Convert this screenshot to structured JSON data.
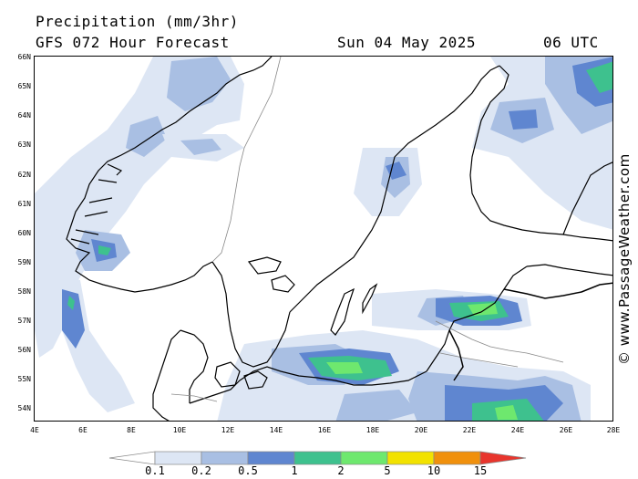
{
  "header": {
    "title": "Precipitation (mm/3hr)",
    "model": "GFS 072 Hour Forecast",
    "date": "Sun 04 May 2025",
    "time": "06 UTC"
  },
  "watermark": "© www.PassageWeather.com",
  "map": {
    "lon_range": [
      4,
      28
    ],
    "lat_range": [
      53.6,
      66
    ],
    "lat_labels": [
      "66N",
      "65N",
      "64N",
      "63N",
      "62N",
      "61N",
      "60N",
      "59N",
      "58N",
      "57N",
      "56N",
      "55N",
      "54N"
    ],
    "lat_values": [
      66,
      65,
      64,
      63,
      62,
      61,
      60,
      59,
      58,
      57,
      56,
      55,
      54
    ],
    "lon_labels": [
      "4E",
      "6E",
      "8E",
      "10E",
      "12E",
      "14E",
      "16E",
      "18E",
      "20E",
      "22E",
      "24E",
      "26E",
      "28E"
    ],
    "lon_values": [
      4,
      6,
      8,
      10,
      12,
      14,
      16,
      18,
      20,
      22,
      24,
      26,
      28
    ],
    "colors": {
      "land": "#ffffff",
      "coast": "#000000",
      "border": "#888888"
    }
  },
  "legend": {
    "labels": [
      "0.1",
      "0.2",
      "0.5",
      "1",
      "2",
      "5",
      "10",
      "15"
    ],
    "colors": [
      "#ffffff",
      "#dde6f4",
      "#a9bfe3",
      "#5f86d0",
      "#3ec18e",
      "#6ee86e",
      "#f2e200",
      "#f0900c",
      "#e8352d"
    ]
  }
}
